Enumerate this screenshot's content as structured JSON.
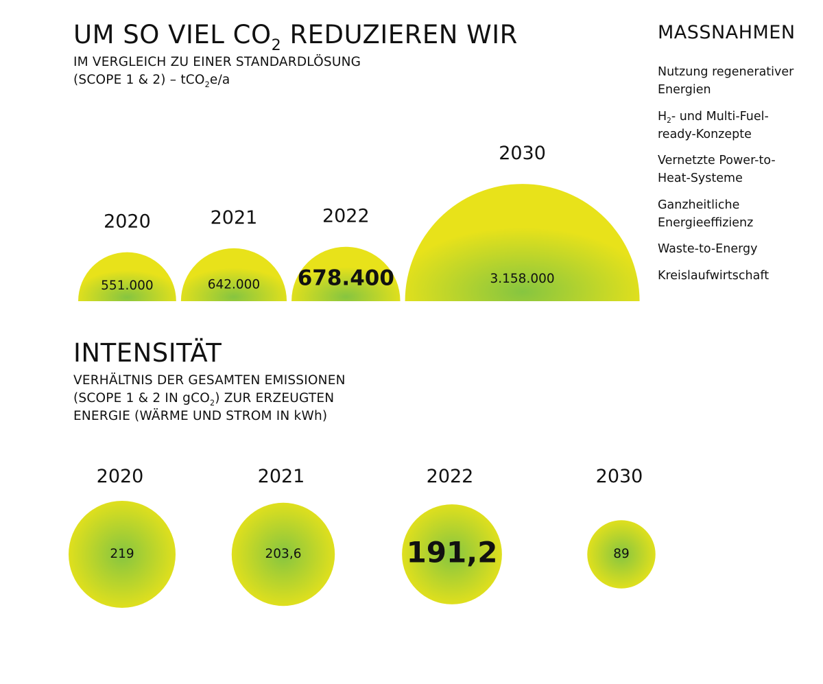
{
  "reduction": {
    "title_prefix": "UM SO VIEL CO",
    "title_sub": "2",
    "title_suffix": " REDUZIEREN WIR",
    "subtitle_line1": "IM VERGLEICH ZU EINER STANDARDLÖSUNG",
    "subtitle_line2_prefix": "(SCOPE 1 & 2) – tCO",
    "subtitle_line2_sub": "2",
    "subtitle_line2_suffix": "e/a"
  },
  "intensity": {
    "title": "INTENSITÄT",
    "subtitle_line1": "VERHÄLTNIS DER GESAMTEN EMISSIONEN",
    "subtitle_line2_prefix": "(SCOPE 1 & 2 IN gCO",
    "subtitle_line2_sub": "2",
    "subtitle_line2_suffix": ") ZUR ERZEUGTEN",
    "subtitle_line3": "ENERGIE (WÄRME UND STROM IN kWh)"
  },
  "measures": {
    "title": "MASSNAHMEN",
    "items": [
      {
        "line1": "Nutzung regenerativer",
        "line2": "Energien"
      },
      {
        "line1_prefix": "H",
        "line1_sub": "2",
        "line1_suffix": "- und Multi-Fuel-",
        "line2": "ready-Konzepte"
      },
      {
        "line1": "Vernetzte Power-to-",
        "line2": "Heat-Systeme"
      },
      {
        "line1": "Ganzheitliche",
        "line2": "Energieeffizienz"
      },
      {
        "line1": "Waste-to-Energy"
      },
      {
        "line1": "Kreislaufwirtschaft"
      }
    ]
  },
  "colors": {
    "bubble_outer": "#e8e21a",
    "bubble_center": "#86c540",
    "text": "#111111"
  },
  "chart_data": [
    {
      "type": "bubble-semicircle",
      "categories": [
        "2020",
        "2021",
        "2022",
        "2030"
      ],
      "values": [
        551000,
        642000,
        678400,
        3158000
      ],
      "value_labels": [
        "551.000",
        "642.000",
        "678.400",
        "3.158.000"
      ],
      "highlight_index": 2
    },
    {
      "type": "bubble-circle",
      "categories": [
        "2020",
        "2021",
        "2022",
        "2030"
      ],
      "values": [
        219,
        203.6,
        191.2,
        89
      ],
      "value_labels": [
        "219",
        "203,6",
        "191,2",
        "89"
      ],
      "highlight_index": 2
    }
  ]
}
